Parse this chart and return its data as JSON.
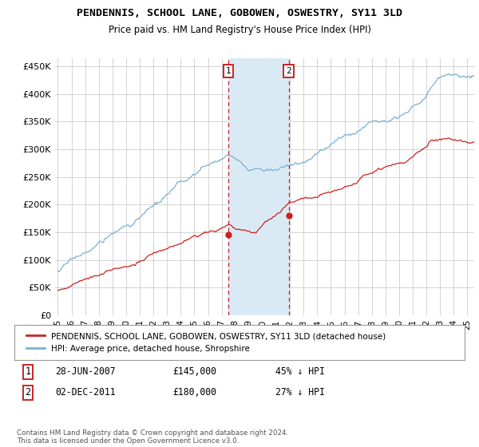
{
  "title": "PENDENNIS, SCHOOL LANE, GOBOWEN, OSWESTRY, SY11 3LD",
  "subtitle": "Price paid vs. HM Land Registry's House Price Index (HPI)",
  "ylabel_ticks": [
    "£0",
    "£50K",
    "£100K",
    "£150K",
    "£200K",
    "£250K",
    "£300K",
    "£350K",
    "£400K",
    "£450K"
  ],
  "ytick_values": [
    0,
    50000,
    100000,
    150000,
    200000,
    250000,
    300000,
    350000,
    400000,
    450000
  ],
  "ylim": [
    0,
    465000
  ],
  "xlim_start": 1994.8,
  "xlim_end": 2025.5,
  "sale1_x": 2007.49,
  "sale1_y": 145000,
  "sale2_x": 2011.92,
  "sale2_y": 180000,
  "hpi_color": "#7ab0d4",
  "price_color": "#cc2222",
  "shaded_color": "#daeaf5",
  "annotation_box_color": "#cc2222",
  "legend_label_red": "PENDENNIS, SCHOOL LANE, GOBOWEN, OSWESTRY, SY11 3LD (detached house)",
  "legend_label_blue": "HPI: Average price, detached house, Shropshire",
  "table_row1": [
    "1",
    "28-JUN-2007",
    "£145,000",
    "45% ↓ HPI"
  ],
  "table_row2": [
    "2",
    "02-DEC-2011",
    "£180,000",
    "27% ↓ HPI"
  ],
  "footnote": "Contains HM Land Registry data © Crown copyright and database right 2024.\nThis data is licensed under the Open Government Licence v3.0.",
  "bg_color": "#ffffff",
  "grid_color": "#cccccc"
}
